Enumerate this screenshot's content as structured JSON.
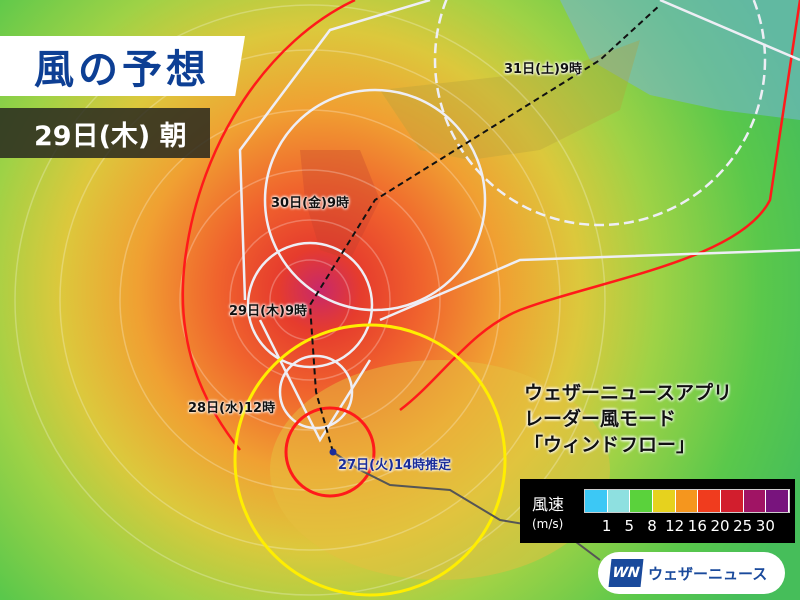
{
  "title": "風の予想",
  "date": "29日(木) 朝",
  "track_labels": {
    "t31": "31日(土)9時",
    "t30": "30日(金)9時",
    "t29": "29日(木)9時",
    "t28": "28日(水)12時",
    "t27": "27日(火)14時推定"
  },
  "promo": {
    "line1": "ウェザーニュースアプリ",
    "line2": "レーダー風モード",
    "line3": "「ウィンドフロー」"
  },
  "legend": {
    "title": "風速",
    "unit": "(m/s)",
    "colors": [
      "#3cc8f5",
      "#8ee0e0",
      "#5ad23c",
      "#e6d21e",
      "#f5961e",
      "#f03c1e",
      "#d21e2d",
      "#a01464",
      "#78147d"
    ],
    "ticks": [
      "1",
      "5",
      "8",
      "12",
      "16",
      "20",
      "25",
      "30"
    ]
  },
  "brand": {
    "logo": "WN",
    "name": "ウェザーニュース"
  },
  "colors": {
    "title": "#0d3f94",
    "storm_zone": "#ff2020",
    "probability_circle": "#ffee00",
    "forecast_circle": "#e8e8f0"
  }
}
